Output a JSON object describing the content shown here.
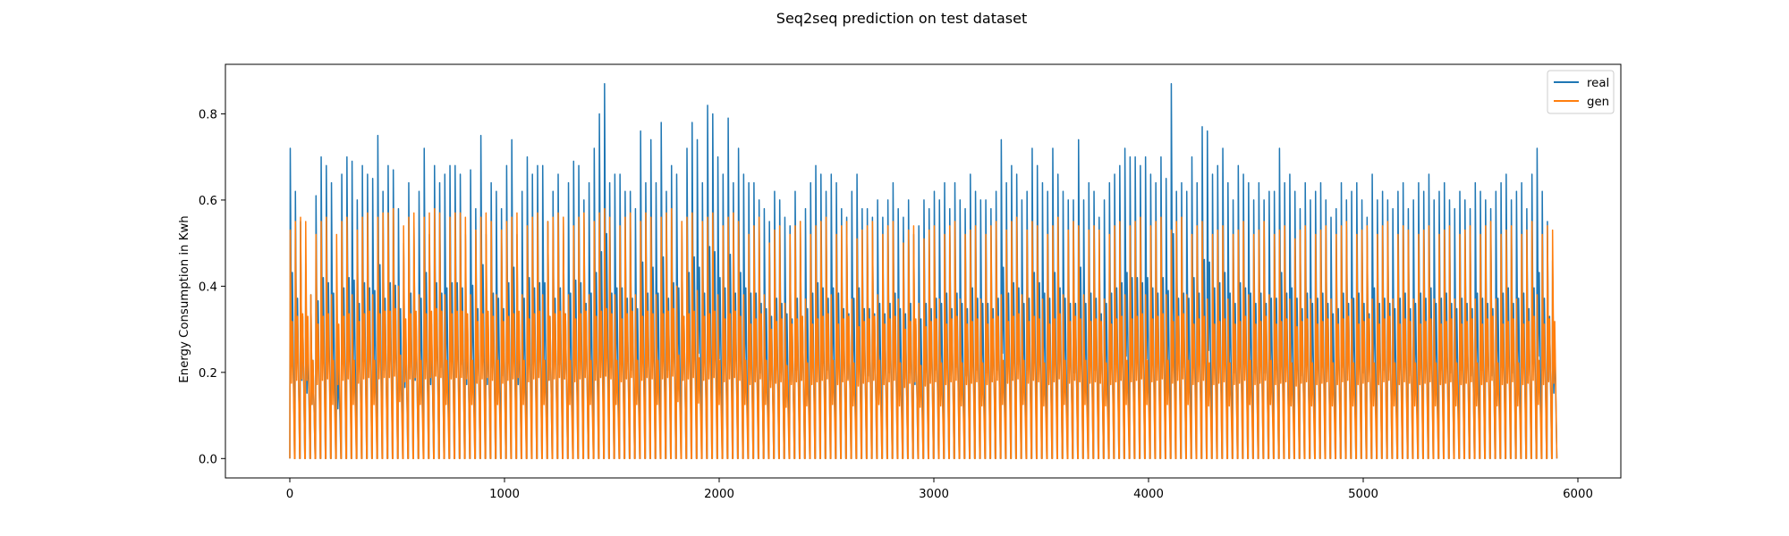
{
  "chart_data": {
    "type": "line",
    "title": "Seq2seq prediction on test dataset",
    "xlabel": "",
    "ylabel": "Energy Consumption in Kwh",
    "xlim": [
      -300,
      6200
    ],
    "ylim": [
      -0.045,
      0.915
    ],
    "xticks": [
      0,
      1000,
      2000,
      3000,
      4000,
      5000,
      6000
    ],
    "xtick_labels": [
      "0",
      "1000",
      "2000",
      "3000",
      "4000",
      "5000",
      "6000"
    ],
    "yticks": [
      0.0,
      0.2,
      0.4,
      0.6,
      0.8
    ],
    "ytick_labels": [
      "0.0",
      "0.2",
      "0.4",
      "0.6",
      "0.8"
    ],
    "grid": false,
    "legend_position": "top-right",
    "n_points": 5904,
    "cycle_length": 24,
    "series": [
      {
        "name": "real",
        "color": "#1f77b4",
        "cycle_peaks": [
          0.72,
          0.62,
          0.55,
          0.46,
          0.38,
          0.61,
          0.7,
          0.68,
          0.64,
          0.35,
          0.66,
          0.7,
          0.69,
          0.6,
          0.68,
          0.66,
          0.65,
          0.75,
          0.62,
          0.68,
          0.67,
          0.58,
          0.5,
          0.64,
          0.55,
          0.62,
          0.72,
          0.52,
          0.68,
          0.64,
          0.66,
          0.68,
          0.68,
          0.66,
          0.52,
          0.67,
          0.58,
          0.75,
          0.52,
          0.64,
          0.62,
          0.58,
          0.68,
          0.74,
          0.52,
          0.62,
          0.7,
          0.66,
          0.68,
          0.68,
          0.55,
          0.62,
          0.66,
          0.56,
          0.64,
          0.69,
          0.68,
          0.6,
          0.64,
          0.72,
          0.8,
          0.87,
          0.64,
          0.66,
          0.66,
          0.62,
          0.62,
          0.58,
          0.76,
          0.64,
          0.74,
          0.64,
          0.78,
          0.62,
          0.68,
          0.66,
          0.55,
          0.72,
          0.78,
          0.74,
          0.64,
          0.82,
          0.8,
          0.7,
          0.66,
          0.79,
          0.64,
          0.72,
          0.66,
          0.64,
          0.64,
          0.6,
          0.58,
          0.55,
          0.62,
          0.6,
          0.56,
          0.54,
          0.62,
          0.55,
          0.58,
          0.64,
          0.68,
          0.66,
          0.62,
          0.66,
          0.64,
          0.58,
          0.56,
          0.62,
          0.66,
          0.58,
          0.58,
          0.56,
          0.6,
          0.56,
          0.6,
          0.64,
          0.58,
          0.56,
          0.6,
          0.52,
          0.54,
          0.6,
          0.58,
          0.62,
          0.6,
          0.64,
          0.58,
          0.64,
          0.6,
          0.58,
          0.66,
          0.62,
          0.6,
          0.6,
          0.58,
          0.62,
          0.74,
          0.64,
          0.68,
          0.66,
          0.6,
          0.62,
          0.72,
          0.68,
          0.64,
          0.62,
          0.72,
          0.66,
          0.62,
          0.6,
          0.6,
          0.74,
          0.6,
          0.64,
          0.62,
          0.56,
          0.6,
          0.64,
          0.66,
          0.68,
          0.72,
          0.7,
          0.7,
          0.68,
          0.7,
          0.66,
          0.64,
          0.7,
          0.65,
          0.87,
          0.62,
          0.64,
          0.62,
          0.7,
          0.64,
          0.77,
          0.76,
          0.66,
          0.68,
          0.72,
          0.64,
          0.6,
          0.68,
          0.66,
          0.64,
          0.6,
          0.64,
          0.6,
          0.62,
          0.62,
          0.72,
          0.64,
          0.66,
          0.62,
          0.58,
          0.64,
          0.6,
          0.62,
          0.64,
          0.6,
          0.56,
          0.58,
          0.64,
          0.6,
          0.62,
          0.64,
          0.6,
          0.56,
          0.66,
          0.6,
          0.62,
          0.6,
          0.58,
          0.62,
          0.64,
          0.58,
          0.6,
          0.64,
          0.62,
          0.66,
          0.6,
          0.62,
          0.64,
          0.6,
          0.58,
          0.62,
          0.6,
          0.58,
          0.64,
          0.62,
          0.6,
          0.58,
          0.62,
          0.64,
          0.66,
          0.6,
          0.62,
          0.64,
          0.58,
          0.66
        ]
      },
      {
        "name": "gen",
        "color": "#ff7f0e",
        "cycle_peaks": [
          0.53,
          0.55,
          0.56,
          0.55,
          0.38,
          0.52,
          0.55,
          0.56,
          0.38,
          0.52,
          0.55,
          0.56,
          0.38,
          0.53,
          0.56,
          0.57,
          0.38,
          0.56,
          0.57,
          0.57,
          0.58,
          0.4,
          0.54,
          0.56,
          0.57,
          0.38,
          0.56,
          0.57,
          0.58,
          0.57,
          0.38,
          0.56,
          0.57,
          0.57,
          0.56,
          0.38,
          0.53,
          0.56,
          0.57,
          0.55,
          0.38,
          0.53,
          0.55,
          0.56,
          0.57,
          0.38,
          0.54,
          0.56,
          0.57,
          0.38,
          0.55,
          0.56,
          0.57,
          0.56,
          0.38,
          0.54,
          0.56,
          0.57,
          0.38,
          0.55,
          0.57,
          0.58,
          0.56,
          0.38,
          0.54,
          0.56,
          0.57,
          0.38,
          0.55,
          0.57,
          0.56,
          0.38,
          0.56,
          0.57,
          0.58,
          0.4,
          0.55,
          0.56,
          0.57,
          0.39,
          0.55,
          0.56,
          0.57,
          0.38,
          0.54,
          0.56,
          0.57,
          0.55,
          0.38,
          0.52,
          0.54,
          0.56,
          0.38,
          0.5,
          0.53,
          0.54,
          0.36,
          0.52,
          0.54,
          0.55,
          0.37,
          0.52,
          0.54,
          0.55,
          0.56,
          0.38,
          0.52,
          0.54,
          0.55,
          0.37,
          0.51,
          0.53,
          0.54,
          0.55,
          0.38,
          0.52,
          0.54,
          0.55,
          0.37,
          0.5,
          0.53,
          0.54,
          0.36,
          0.51,
          0.53,
          0.54,
          0.37,
          0.52,
          0.54,
          0.55,
          0.37,
          0.52,
          0.53,
          0.54,
          0.37,
          0.52,
          0.54,
          0.55,
          0.38,
          0.53,
          0.55,
          0.56,
          0.38,
          0.53,
          0.55,
          0.54,
          0.37,
          0.52,
          0.54,
          0.56,
          0.38,
          0.53,
          0.55,
          0.54,
          0.38,
          0.53,
          0.54,
          0.53,
          0.37,
          0.52,
          0.54,
          0.55,
          0.38,
          0.54,
          0.55,
          0.56,
          0.38,
          0.54,
          0.55,
          0.56,
          0.38,
          0.53,
          0.55,
          0.56,
          0.38,
          0.52,
          0.54,
          0.55,
          0.37,
          0.52,
          0.53,
          0.54,
          0.37,
          0.52,
          0.53,
          0.55,
          0.38,
          0.52,
          0.53,
          0.55,
          0.38,
          0.52,
          0.53,
          0.54,
          0.37,
          0.51,
          0.53,
          0.54,
          0.37,
          0.52,
          0.53,
          0.54,
          0.37,
          0.52,
          0.54,
          0.55,
          0.37,
          0.52,
          0.53,
          0.54,
          0.37,
          0.52,
          0.54,
          0.55,
          0.37,
          0.52,
          0.54,
          0.53,
          0.37,
          0.52,
          0.53,
          0.54,
          0.37,
          0.52,
          0.53,
          0.54,
          0.37,
          0.52,
          0.53,
          0.54,
          0.37,
          0.52,
          0.54,
          0.55,
          0.37,
          0.52,
          0.53,
          0.54,
          0.37,
          0.52,
          0.53,
          0.55,
          0.38,
          0.52,
          0.54
        ]
      }
    ]
  }
}
